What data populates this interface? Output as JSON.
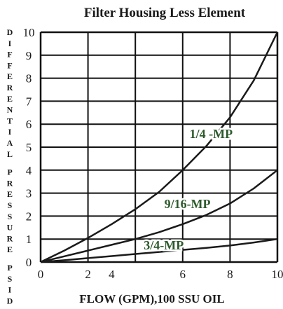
{
  "chart_data": {
    "type": "line",
    "title": "Filter Housing Less Element",
    "xlabel": "FLOW (GPM),100 SSU OIL",
    "ylabel": "DIFFERENTIAL PRESSURE PSID",
    "xlim": [
      0,
      10
    ],
    "ylim": [
      0,
      10
    ],
    "x_ticks": [
      "0",
      "2",
      "4",
      "6",
      "8",
      "10"
    ],
    "y_ticks": [
      "0",
      "1",
      "2",
      "3",
      "4",
      "5",
      "6",
      "7",
      "8",
      "9",
      "10"
    ],
    "grid": true,
    "colors": {
      "line": "#1a1a1a",
      "grid": "#111111",
      "label": "#2d5a2d"
    },
    "series": [
      {
        "name": "1/4 -MP",
        "x": [
          0,
          1,
          2,
          3,
          4,
          5,
          6,
          7,
          8,
          9,
          10
        ],
        "y": [
          0,
          0.5,
          1.05,
          1.65,
          2.3,
          3.05,
          4.0,
          5.05,
          6.3,
          7.9,
          10.0
        ]
      },
      {
        "name": "9/16-MP",
        "x": [
          0,
          1,
          2,
          3,
          4,
          5,
          6,
          7,
          8,
          9,
          10
        ],
        "y": [
          0,
          0.25,
          0.5,
          0.75,
          1.0,
          1.3,
          1.65,
          2.05,
          2.55,
          3.2,
          4.0
        ]
      },
      {
        "name": "3/4-MP",
        "x": [
          0,
          1,
          2,
          3,
          4,
          5,
          6,
          7,
          8,
          9,
          10
        ],
        "y": [
          0,
          0.08,
          0.17,
          0.26,
          0.35,
          0.44,
          0.53,
          0.62,
          0.72,
          0.85,
          1.0
        ]
      }
    ]
  }
}
